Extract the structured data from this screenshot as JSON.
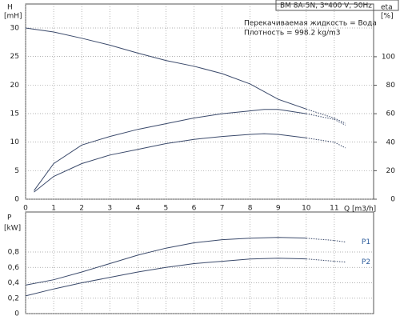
{
  "chart_data": [
    {
      "type": "line",
      "title": "BM 8A-5N, 3*400 V, 50Hz",
      "annotations": [
        "Перекачиваемая жидкость = Вода",
        "Плотность = 998.2 kg/m3"
      ],
      "ylabel": "H",
      "ylabel_unit": "[mH]",
      "y2label": "eta",
      "y2label_unit": "[%]",
      "xlabel": "Q [m3/h]",
      "xlim": [
        0,
        12.4
      ],
      "xticks": [
        0,
        1,
        2,
        3,
        4,
        5,
        6,
        7,
        8,
        9,
        10,
        11
      ],
      "ylim": [
        0,
        34.2
      ],
      "yticks": [
        0,
        5,
        10,
        15,
        20,
        25,
        30
      ],
      "y2lim": [
        0,
        137
      ],
      "y2ticks": [
        0,
        20,
        40,
        60,
        80,
        100
      ],
      "grid": true,
      "dashed_after_x": 10,
      "series": [
        {
          "color": "#3b4a6b",
          "x": [
            0,
            1,
            2,
            3,
            4,
            5,
            6,
            7,
            8,
            9,
            10,
            11,
            11.4
          ],
          "values": [
            30,
            29.3,
            28.2,
            27,
            25.6,
            24.3,
            23.3,
            22,
            20.2,
            17.5,
            15.8,
            14.2,
            13.3
          ]
        },
        {
          "color": "#3b4a6b",
          "axis": "y2",
          "x": [
            0.3,
            1,
            2,
            3,
            4,
            5,
            6,
            7,
            8,
            8.5,
            9,
            10,
            11,
            11.4
          ],
          "values": [
            6,
            25,
            38,
            44,
            49,
            53,
            57,
            60,
            62,
            63,
            63,
            60,
            56,
            52
          ]
        },
        {
          "color": "#3b4a6b",
          "axis": "y2",
          "x": [
            0.3,
            1,
            2,
            3,
            4,
            5,
            6,
            7,
            8,
            8.5,
            9,
            10,
            11,
            11.4
          ],
          "values": [
            5,
            16,
            25,
            31,
            35,
            39,
            42,
            44,
            45.5,
            46,
            45.5,
            43,
            40,
            36
          ]
        }
      ]
    },
    {
      "type": "line",
      "ylabel": "P",
      "ylabel_unit": "[kW]",
      "xlim": [
        0,
        12.4
      ],
      "ylim": [
        0,
        1.32
      ],
      "yticks": [
        0,
        {
          "value": 0.2,
          "label": "0,2"
        },
        {
          "value": 0.4,
          "label": "0,4"
        },
        {
          "value": 0.6,
          "label": "0,6"
        },
        {
          "value": 0.8,
          "label": "0,8"
        }
      ],
      "grid": true,
      "dashed_after_x": 10,
      "series": [
        {
          "name": "P1",
          "color": "#3b4a6b",
          "x": [
            0,
            1,
            2,
            3,
            4,
            5,
            6,
            7,
            8,
            9,
            10,
            11,
            11.4
          ],
          "values": [
            0.37,
            0.44,
            0.54,
            0.65,
            0.76,
            0.85,
            0.92,
            0.96,
            0.98,
            0.99,
            0.98,
            0.95,
            0.93
          ]
        },
        {
          "name": "P2",
          "color": "#3b4a6b",
          "x": [
            0,
            1,
            2,
            3,
            4,
            5,
            6,
            7,
            8,
            9,
            10,
            11,
            11.4
          ],
          "values": [
            0.23,
            0.32,
            0.4,
            0.47,
            0.54,
            0.6,
            0.65,
            0.68,
            0.71,
            0.72,
            0.71,
            0.68,
            0.67
          ]
        }
      ]
    }
  ]
}
